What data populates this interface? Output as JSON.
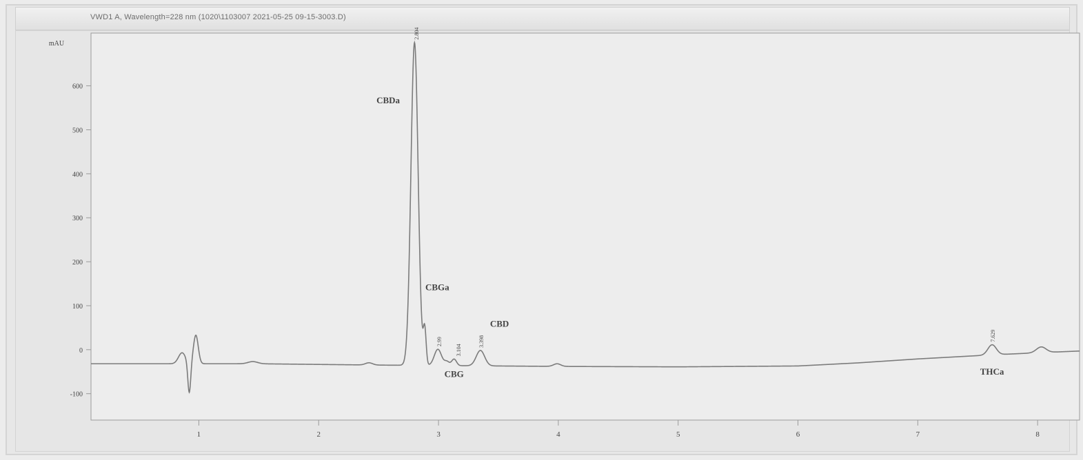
{
  "window": {
    "title": "VWD1 A, Wavelength=228 nm (1020\\1103007 2021-05-25 09-15-3003.D)"
  },
  "chart_data": {
    "type": "line",
    "title": "",
    "xlabel": "",
    "ylabel": "mAU",
    "xlim": [
      0.1,
      8.35
    ],
    "ylim": [
      -160,
      720
    ],
    "x_ticks": [
      1,
      2,
      3,
      4,
      5,
      6,
      7,
      8
    ],
    "x_tick_labels": [
      "1",
      "2",
      "3",
      "4",
      "5",
      "6",
      "7",
      "8"
    ],
    "y_ticks": [
      -100,
      0,
      100,
      200,
      300,
      400,
      500,
      600
    ],
    "y_tick_labels": [
      "-100",
      "0",
      "100",
      "200",
      "300",
      "400",
      "500",
      "600"
    ],
    "baseline": [
      {
        "x": 0.1,
        "y": -32
      },
      {
        "x": 1.5,
        "y": -32
      },
      {
        "x": 2.5,
        "y": -35
      },
      {
        "x": 3.0,
        "y": -36
      },
      {
        "x": 4.0,
        "y": -38
      },
      {
        "x": 5.0,
        "y": -39
      },
      {
        "x": 6.0,
        "y": -37
      },
      {
        "x": 6.5,
        "y": -30
      },
      {
        "x": 7.0,
        "y": -21
      },
      {
        "x": 7.6,
        "y": -12
      },
      {
        "x": 8.0,
        "y": -7
      },
      {
        "x": 8.35,
        "y": -3
      }
    ],
    "peaks": [
      {
        "x": 0.86,
        "height": 25,
        "width": 0.03,
        "name": ""
      },
      {
        "x": 0.92,
        "height": -70,
        "width": 0.012,
        "name": ""
      },
      {
        "x": 0.975,
        "height": 65,
        "width": 0.02,
        "name": ""
      },
      {
        "x": 1.45,
        "height": 5,
        "width": 0.04,
        "name": ""
      },
      {
        "x": 2.42,
        "height": 5,
        "width": 0.03,
        "name": ""
      },
      {
        "x": 2.8,
        "height": 734,
        "width": 0.03,
        "name": "CBDa"
      },
      {
        "x": 2.885,
        "height": 80,
        "width": 0.012,
        "name": "CBGa"
      },
      {
        "x": 2.995,
        "height": 37,
        "width": 0.03,
        "name": ""
      },
      {
        "x": 3.07,
        "height": 9,
        "width": 0.02,
        "name": ""
      },
      {
        "x": 3.13,
        "height": 15,
        "width": 0.02,
        "name": "CBG"
      },
      {
        "x": 3.35,
        "height": 35,
        "width": 0.035,
        "name": "CBD"
      },
      {
        "x": 3.99,
        "height": 6,
        "width": 0.03,
        "name": ""
      },
      {
        "x": 7.62,
        "height": 23,
        "width": 0.035,
        "name": "THCa"
      },
      {
        "x": 8.03,
        "height": 13,
        "width": 0.04,
        "name": ""
      }
    ],
    "compound_labels": [
      "CBDa",
      "CBGa",
      "CBG",
      "CBD",
      "THCa"
    ],
    "retention_labels": [
      {
        "text": "2.804",
        "x": 2.81
      },
      {
        "text": "2.99",
        "x": 3.0
      },
      {
        "text": "3.104",
        "x": 3.16
      },
      {
        "text": "3.398",
        "x": 3.35
      },
      {
        "text": "7.629",
        "x": 7.62
      }
    ],
    "colors": {
      "trace": "#7b7b7b",
      "plot_background": "#ededed",
      "axis": "#9a9a9a",
      "text": "#444444"
    },
    "grid": false,
    "legend": "none"
  }
}
